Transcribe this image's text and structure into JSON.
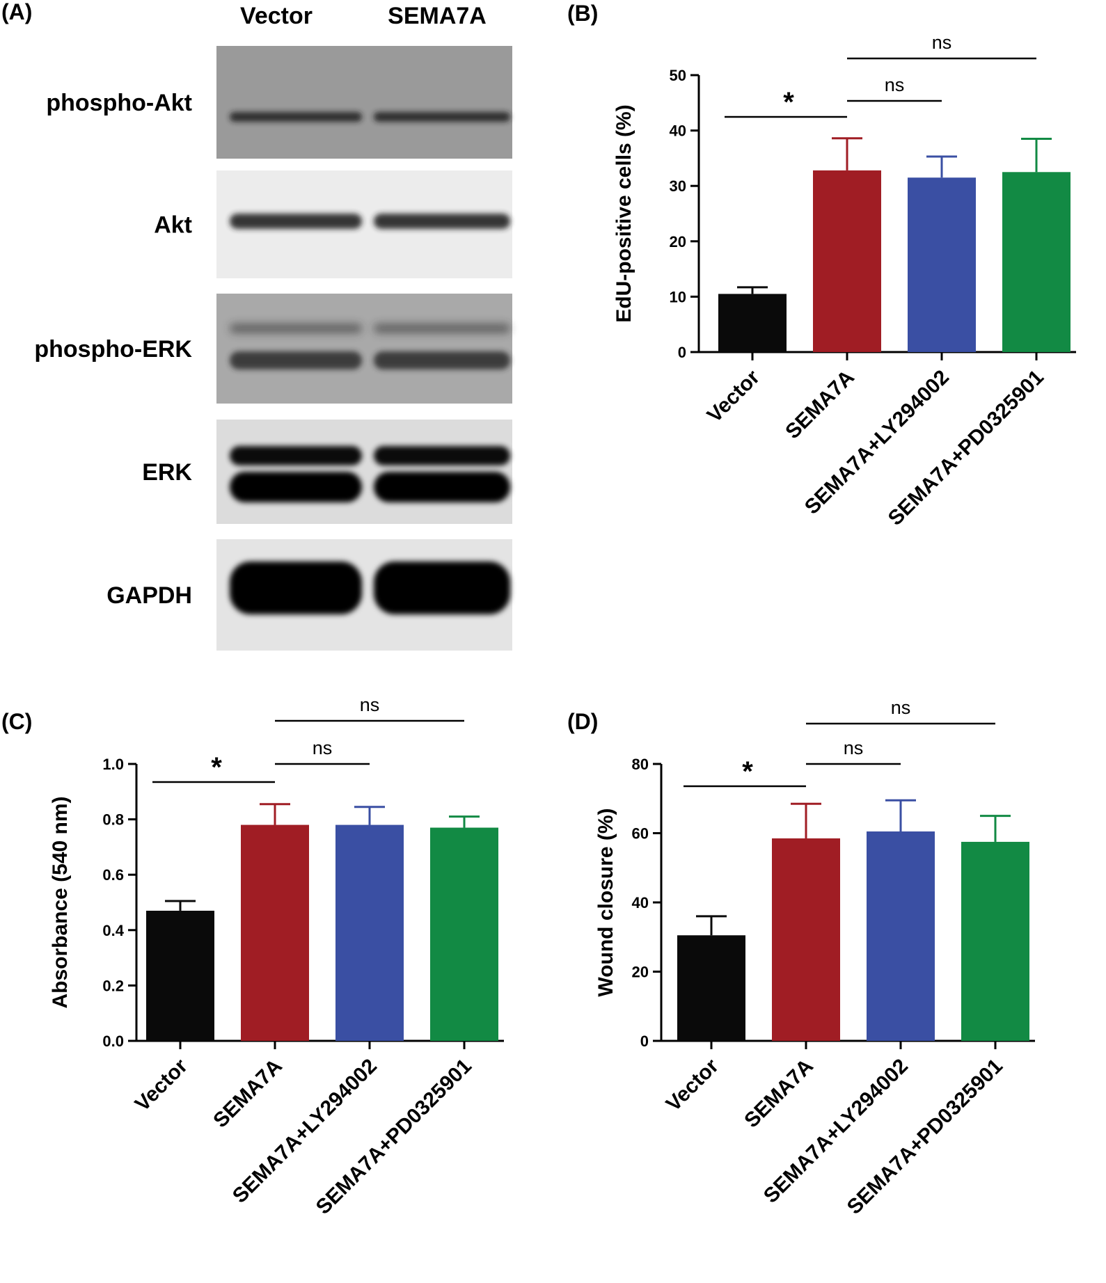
{
  "colors": {
    "vector": "#0a0a0a",
    "sema7a": "#a01d24",
    "ly294002": "#3a4fa3",
    "pd0325901": "#128a44"
  },
  "panel_a": {
    "letter": "(A)",
    "lanes": [
      "Vector",
      "SEMA7A"
    ],
    "blots": [
      {
        "label": "phospho-Akt",
        "background": "#9a9a9a",
        "band_color": "#1e1e1e"
      },
      {
        "label": "Akt",
        "background": "#ececec",
        "band_color": "#222222"
      },
      {
        "label": "phospho-ERK",
        "background": "#a9a9a9",
        "band_color": "#2a2a2a"
      },
      {
        "label": "ERK",
        "background": "#dcdcdc",
        "band_color": "#050505"
      },
      {
        "label": "GAPDH",
        "background": "#e4e4e4",
        "band_color": "#000000"
      }
    ]
  },
  "chart_data": [
    {
      "panel": "(B)",
      "type": "bar",
      "categories": [
        "Vector",
        "SEMA7A",
        "SEMA7A+LY294002",
        "SEMA7A+PD0325901"
      ],
      "values": [
        10.5,
        32.8,
        31.5,
        32.5
      ],
      "errors": [
        1.2,
        5.8,
        3.8,
        6.0
      ],
      "ylabel": "EdU-positive cells (%)",
      "ylim": [
        0,
        50
      ],
      "yticks": [
        0,
        10,
        20,
        30,
        40,
        50
      ],
      "significance": [
        {
          "from": 0,
          "to": 1,
          "label": "*"
        },
        {
          "from": 1,
          "to": 2,
          "label": "ns"
        },
        {
          "from": 1,
          "to": 3,
          "label": "ns"
        }
      ]
    },
    {
      "panel": "(C)",
      "type": "bar",
      "categories": [
        "Vector",
        "SEMA7A",
        "SEMA7A+LY294002",
        "SEMA7A+PD0325901"
      ],
      "values": [
        0.47,
        0.78,
        0.78,
        0.77
      ],
      "errors": [
        0.035,
        0.075,
        0.065,
        0.04
      ],
      "ylabel": "Absorbance (540 nm)",
      "ylim": [
        0,
        1.0
      ],
      "yticks": [
        "0.0",
        "0.2",
        "0.4",
        "0.6",
        "0.8",
        "1.0"
      ],
      "significance": [
        {
          "from": 0,
          "to": 1,
          "label": "*"
        },
        {
          "from": 1,
          "to": 2,
          "label": "ns"
        },
        {
          "from": 1,
          "to": 3,
          "label": "ns"
        }
      ]
    },
    {
      "panel": "(D)",
      "type": "bar",
      "categories": [
        "Vector",
        "SEMA7A",
        "SEMA7A+LY294002",
        "SEMA7A+PD0325901"
      ],
      "values": [
        30.5,
        58.5,
        60.5,
        57.5
      ],
      "errors": [
        5.5,
        10.0,
        9.0,
        7.5
      ],
      "ylabel": "Wound closure (%)",
      "ylim": [
        0,
        80
      ],
      "yticks": [
        0,
        20,
        40,
        60,
        80
      ],
      "significance": [
        {
          "from": 0,
          "to": 1,
          "label": "*"
        },
        {
          "from": 1,
          "to": 2,
          "label": "ns"
        },
        {
          "from": 1,
          "to": 3,
          "label": "ns"
        }
      ]
    }
  ]
}
